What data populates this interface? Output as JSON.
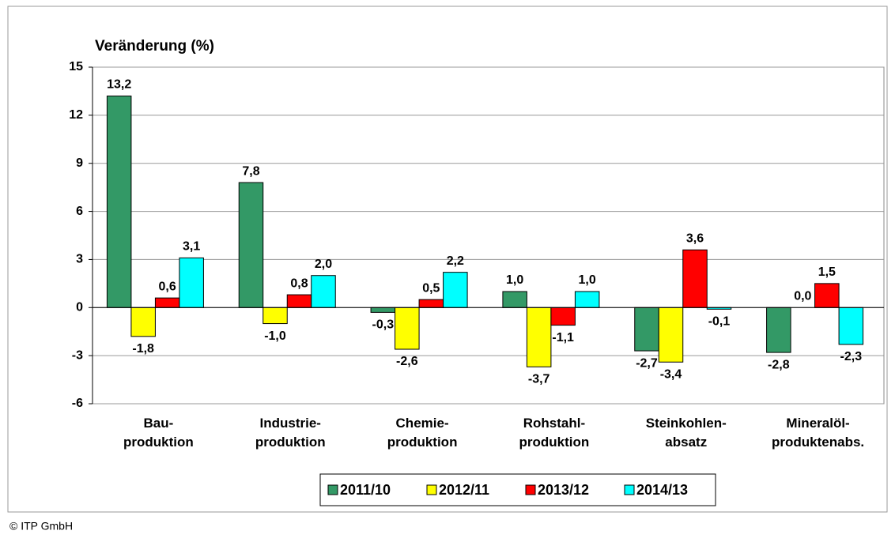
{
  "chart_data": {
    "type": "bar",
    "y_label": "Veränderung (%)",
    "source": "© ITP GmbH",
    "categories": [
      [
        "Bau-",
        "produktion"
      ],
      [
        "Industrie-",
        "produktion"
      ],
      [
        "Chemie-",
        "produktion"
      ],
      [
        "Rohstahl-",
        "produktion"
      ],
      [
        "Steinkohlen-",
        "absatz"
      ],
      [
        "Mineralöl-",
        "produktenabs."
      ]
    ],
    "series": [
      {
        "name": "2011/10",
        "color": "#339966",
        "values": [
          13.2,
          7.8,
          -0.3,
          1.0,
          -2.7,
          -2.8
        ],
        "value_labels": [
          "13,2",
          "7,8",
          "-0,3",
          "1,0",
          "-2,7",
          "-2,8"
        ]
      },
      {
        "name": "2012/11",
        "color": "#ffff00",
        "values": [
          -1.8,
          -1.0,
          -2.6,
          -3.7,
          -3.4,
          0.0
        ],
        "value_labels": [
          "-1,8",
          "-1,0",
          "-2,6",
          "-3,7",
          "-3,4",
          "0,0"
        ]
      },
      {
        "name": "2013/12",
        "color": "#ff0000",
        "values": [
          0.6,
          0.8,
          0.5,
          -1.1,
          3.6,
          1.5
        ],
        "value_labels": [
          "0,6",
          "0,8",
          "0,5",
          "-1,1",
          "3,6",
          "1,5"
        ]
      },
      {
        "name": "2014/13",
        "color": "#00ffff",
        "values": [
          3.1,
          2.0,
          2.2,
          1.0,
          -0.1,
          -2.3
        ],
        "value_labels": [
          "3,1",
          "2,0",
          "2,2",
          "1,0",
          "-0,1",
          "-2,3"
        ]
      }
    ],
    "ylim": [
      -6,
      15
    ],
    "yticks": [
      15,
      12,
      9,
      6,
      3,
      0,
      -3,
      -6
    ],
    "grid": true,
    "legend": "bottom"
  }
}
